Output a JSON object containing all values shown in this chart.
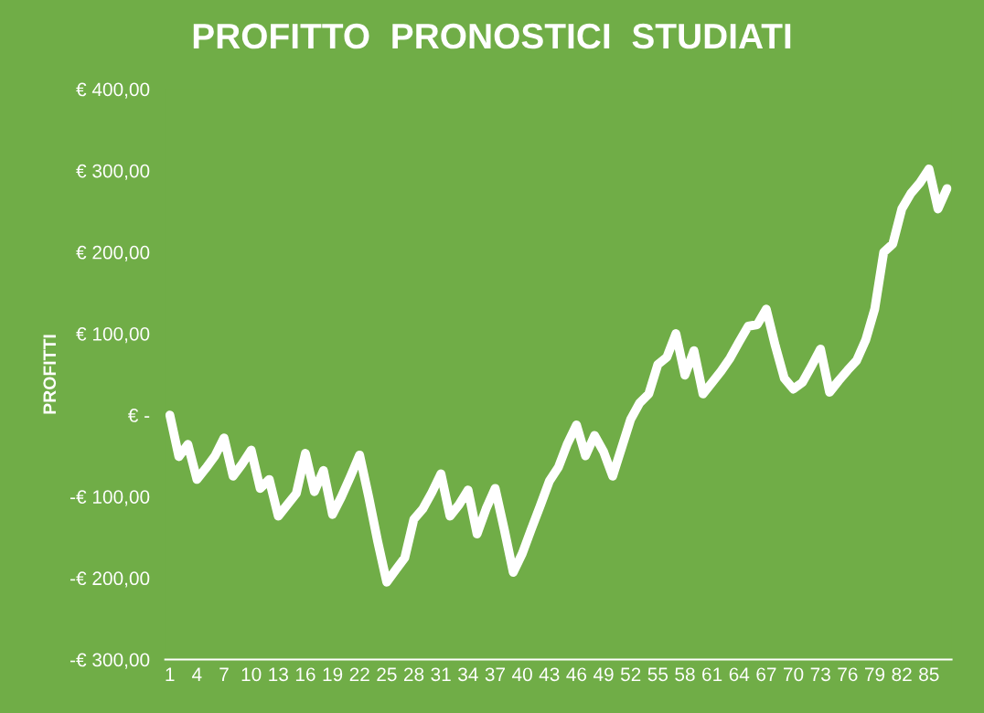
{
  "chart_data": {
    "type": "line",
    "title": "PROFITTO  PRONOSTICI  STUDIATI",
    "ylabel": "PROFITTI",
    "categories": [
      "1",
      null,
      null,
      "4",
      null,
      null,
      "7",
      null,
      null,
      "10",
      null,
      null,
      "13",
      null,
      null,
      "16",
      null,
      null,
      "19",
      null,
      null,
      "22",
      null,
      null,
      "25",
      null,
      null,
      "28",
      null,
      null,
      "31",
      null,
      null,
      "34",
      null,
      null,
      "37",
      null,
      null,
      "40",
      null,
      null,
      "43",
      null,
      null,
      "46",
      null,
      null,
      "49",
      null,
      null,
      "52",
      null,
      null,
      "55",
      null,
      null,
      "58",
      null,
      null,
      "61",
      null,
      null,
      "64",
      null,
      null,
      "67",
      null,
      null,
      "70",
      null,
      null,
      "73",
      null,
      null,
      "76",
      null,
      null,
      "79",
      null,
      null,
      "82",
      null,
      null,
      "85",
      null,
      null
    ],
    "series": [
      {
        "color": "#ffffff",
        "values": [
          0,
          -51,
          -36,
          -79,
          -65,
          -50,
          -28,
          -75,
          -60,
          -43,
          -90,
          -79,
          -124,
          -110,
          -96,
          -47,
          -94,
          -68,
          -122,
          -100,
          -75,
          -49,
          -100,
          -155,
          -205,
          -190,
          -175,
          -128,
          -115,
          -95,
          -72,
          -124,
          -110,
          -92,
          -146,
          -115,
          -90,
          -140,
          -193,
          -170,
          -140,
          -111,
          -81,
          -64,
          -35,
          -12,
          -50,
          -25,
          -45,
          -75,
          -40,
          -5,
          15,
          26,
          62,
          71,
          100,
          49,
          79,
          26,
          40,
          54,
          70,
          90,
          109,
          111,
          130,
          85,
          45,
          32,
          40,
          60,
          81,
          28,
          42,
          55,
          67,
          92,
          130,
          200,
          210,
          253,
          272,
          285,
          302,
          253,
          278
        ]
      }
    ],
    "ylim": [
      -300,
      400
    ],
    "yticks": [
      {
        "value": -300,
        "label": "-€ 300,00"
      },
      {
        "value": -200,
        "label": "-€ 200,00"
      },
      {
        "value": -100,
        "label": "-€ 100,00"
      },
      {
        "value": 0,
        "label": "€ -"
      },
      {
        "value": 100,
        "label": "€ 100,00"
      },
      {
        "value": 200,
        "label": "€ 200,00"
      },
      {
        "value": 300,
        "label": "€ 300,00"
      },
      {
        "value": 400,
        "label": "€ 400,00"
      }
    ],
    "grid": false,
    "legend": false,
    "marker": "none",
    "line_style": "solid"
  }
}
